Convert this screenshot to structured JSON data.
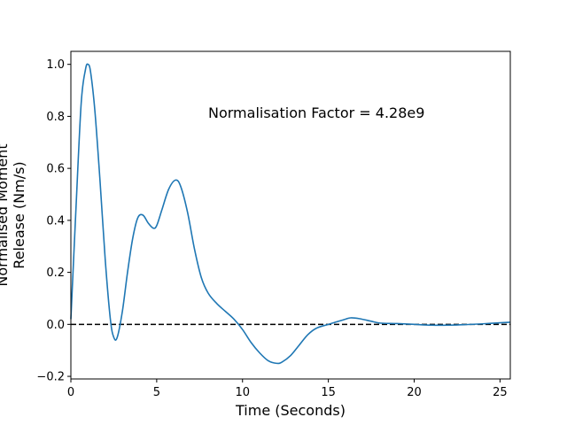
{
  "chart_data": {
    "type": "line",
    "title": "",
    "xlabel": "Time (Seconds)",
    "ylabel_lines": [
      "Normalised Moment",
      "Release (Nm/s)"
    ],
    "annotation": "Normalisation Factor = 4.28e9",
    "xlim": [
      0,
      25.6
    ],
    "ylim": [
      -0.21,
      1.05
    ],
    "xticks": [
      0,
      5,
      10,
      15,
      20,
      25
    ],
    "yticks": [
      -0.2,
      0.0,
      0.2,
      0.4,
      0.6,
      0.8,
      1.0
    ],
    "xtick_labels": [
      "0",
      "5",
      "10",
      "15",
      "20",
      "25"
    ],
    "ytick_labels": [
      "−0.2",
      "0.0",
      "0.2",
      "0.4",
      "0.6",
      "0.8",
      "1.0"
    ],
    "grid": false,
    "reference_line": {
      "y": 0.0,
      "style": "dashed",
      "color": "#000000"
    },
    "series": [
      {
        "color": "#1f77b4",
        "x": [
          0,
          0.3,
          0.6,
          0.85,
          1.0,
          1.15,
          1.4,
          1.7,
          2.0,
          2.3,
          2.5,
          2.7,
          3.0,
          3.3,
          3.6,
          3.9,
          4.2,
          4.5,
          4.8,
          5.0,
          5.3,
          5.7,
          6.1,
          6.4,
          6.8,
          7.2,
          7.6,
          8.0,
          8.5,
          9.0,
          9.5,
          10.0,
          10.5,
          11.0,
          11.5,
          12.0,
          12.3,
          12.8,
          13.3,
          13.8,
          14.3,
          15.0,
          15.5,
          16.0,
          16.3,
          16.8,
          17.5,
          18.0,
          19.0,
          20.0,
          21.0,
          22.0,
          23.0,
          24.0,
          25.0,
          25.6
        ],
        "y": [
          0.02,
          0.45,
          0.85,
          0.98,
          1.0,
          0.97,
          0.82,
          0.55,
          0.25,
          0.02,
          -0.05,
          -0.05,
          0.05,
          0.2,
          0.33,
          0.41,
          0.42,
          0.39,
          0.37,
          0.38,
          0.44,
          0.52,
          0.555,
          0.53,
          0.43,
          0.29,
          0.18,
          0.12,
          0.08,
          0.05,
          0.02,
          -0.02,
          -0.07,
          -0.11,
          -0.14,
          -0.15,
          -0.145,
          -0.12,
          -0.08,
          -0.04,
          -0.015,
          0.0,
          0.01,
          0.02,
          0.025,
          0.022,
          0.012,
          0.005,
          0.003,
          0.0,
          -0.003,
          -0.003,
          -0.001,
          0.002,
          0.006,
          0.008
        ]
      }
    ]
  }
}
